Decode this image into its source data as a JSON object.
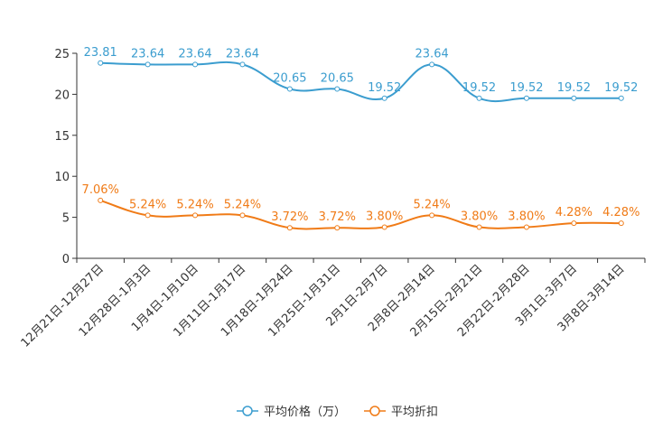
{
  "chart_data": {
    "type": "line",
    "categories": [
      "12月21日-12月27日",
      "12月28日-1月3日",
      "1月4日-1月10日",
      "1月11日-1月17日",
      "1月18日-1月24日",
      "1月25日-1月31日",
      "2月1日-2月7日",
      "2月8日-2月14日",
      "2月15日-2月21日",
      "2月22日-2月28日",
      "3月1日-3月7日",
      "3月8日-3月14日"
    ],
    "series": [
      {
        "name": "平均价格（万）",
        "color": "#3b9dcf",
        "values": [
          23.81,
          23.64,
          23.64,
          23.64,
          20.65,
          20.65,
          19.52,
          23.64,
          19.52,
          19.52,
          19.52,
          19.52
        ],
        "labels": [
          "23.81",
          "23.64",
          "23.64",
          "23.64",
          "20.65",
          "20.65",
          "19.52",
          "23.64",
          "19.52",
          "19.52",
          "19.52",
          "19.52"
        ]
      },
      {
        "name": "平均折扣",
        "color": "#f07b17",
        "values": [
          7.06,
          5.24,
          5.24,
          5.24,
          3.72,
          3.72,
          3.8,
          5.24,
          3.8,
          3.8,
          4.28,
          4.28
        ],
        "labels": [
          "7.06%",
          "5.24%",
          "5.24%",
          "5.24%",
          "3.72%",
          "3.72%",
          "3.80%",
          "5.24%",
          "3.80%",
          "3.80%",
          "4.28%",
          "4.28%"
        ]
      }
    ],
    "yticks": [
      0,
      5,
      10,
      15,
      20,
      25
    ],
    "ylim": [
      0,
      25
    ],
    "legend_position": "bottom-center",
    "smooth": true
  }
}
